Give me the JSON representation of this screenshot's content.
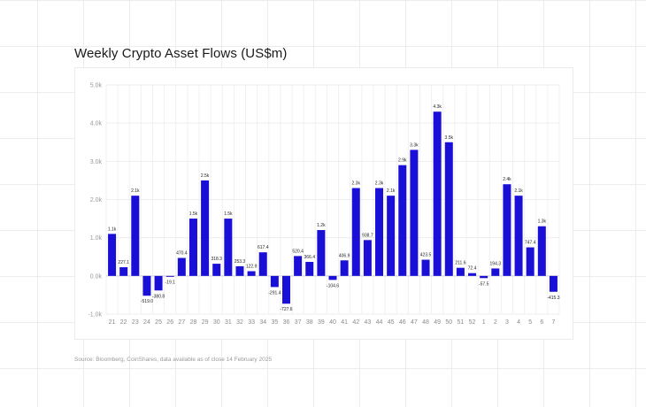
{
  "chart_data": {
    "type": "bar",
    "title": "Weekly Crypto Asset Flows (US$m)",
    "source": "Source: Bloomberg, CoinShares, data available as of close 14 February 2025",
    "ylim": [
      -1000,
      5000
    ],
    "yticks": [
      -1000,
      0,
      1000,
      2000,
      3000,
      4000,
      5000
    ],
    "ytick_labels": [
      "-1.0k",
      "0.0k",
      "1.0k",
      "2.0k",
      "3.0k",
      "4.0k",
      "5.0k"
    ],
    "grid": true,
    "bar_color": "#1a0fd6",
    "categories": [
      "21",
      "22",
      "23",
      "24",
      "25",
      "26",
      "27",
      "28",
      "29",
      "30",
      "31",
      "32",
      "33",
      "34",
      "35",
      "36",
      "37",
      "38",
      "39",
      "40",
      "41",
      "42",
      "43",
      "44",
      "45",
      "46",
      "47",
      "48",
      "49",
      "50",
      "51",
      "52",
      "1",
      "2",
      "3",
      "4",
      "5",
      "6",
      "7"
    ],
    "values": [
      1100,
      227.1,
      2100,
      -519.0,
      -380.8,
      -19.1,
      470.4,
      1500,
      2500,
      318.3,
      1500,
      253.3,
      122.9,
      617.4,
      -291.4,
      -727.6,
      520.4,
      366.4,
      1200,
      -104.6,
      406.9,
      2300,
      938.7,
      2300,
      2100,
      2900,
      3300,
      423.5,
      4300,
      3500,
      211.6,
      72.4,
      -57.5,
      194.3,
      2400,
      2100,
      747.4,
      1300,
      -415.3
    ],
    "labels": [
      "1.1k",
      "227.1",
      "2.1k",
      "-519.0",
      "-380.8",
      "-19.1",
      "470.4",
      "1.5k",
      "2.5k",
      "318.3",
      "1.5k",
      "253.3",
      "122.9",
      "617.4",
      "-291.4",
      "-727.6",
      "520.4",
      "366.4",
      "1.2k",
      "-104.6",
      "406.9",
      "2.3k",
      "938.7",
      "2.3k",
      "2.1k",
      "2.9k",
      "3.3k",
      "423.5",
      "4.3k",
      "3.5k",
      "211.6",
      "72.4",
      "-57.5",
      "194.3",
      "2.4k",
      "2.1k",
      "747.4",
      "1.3k",
      "-415.3"
    ]
  }
}
